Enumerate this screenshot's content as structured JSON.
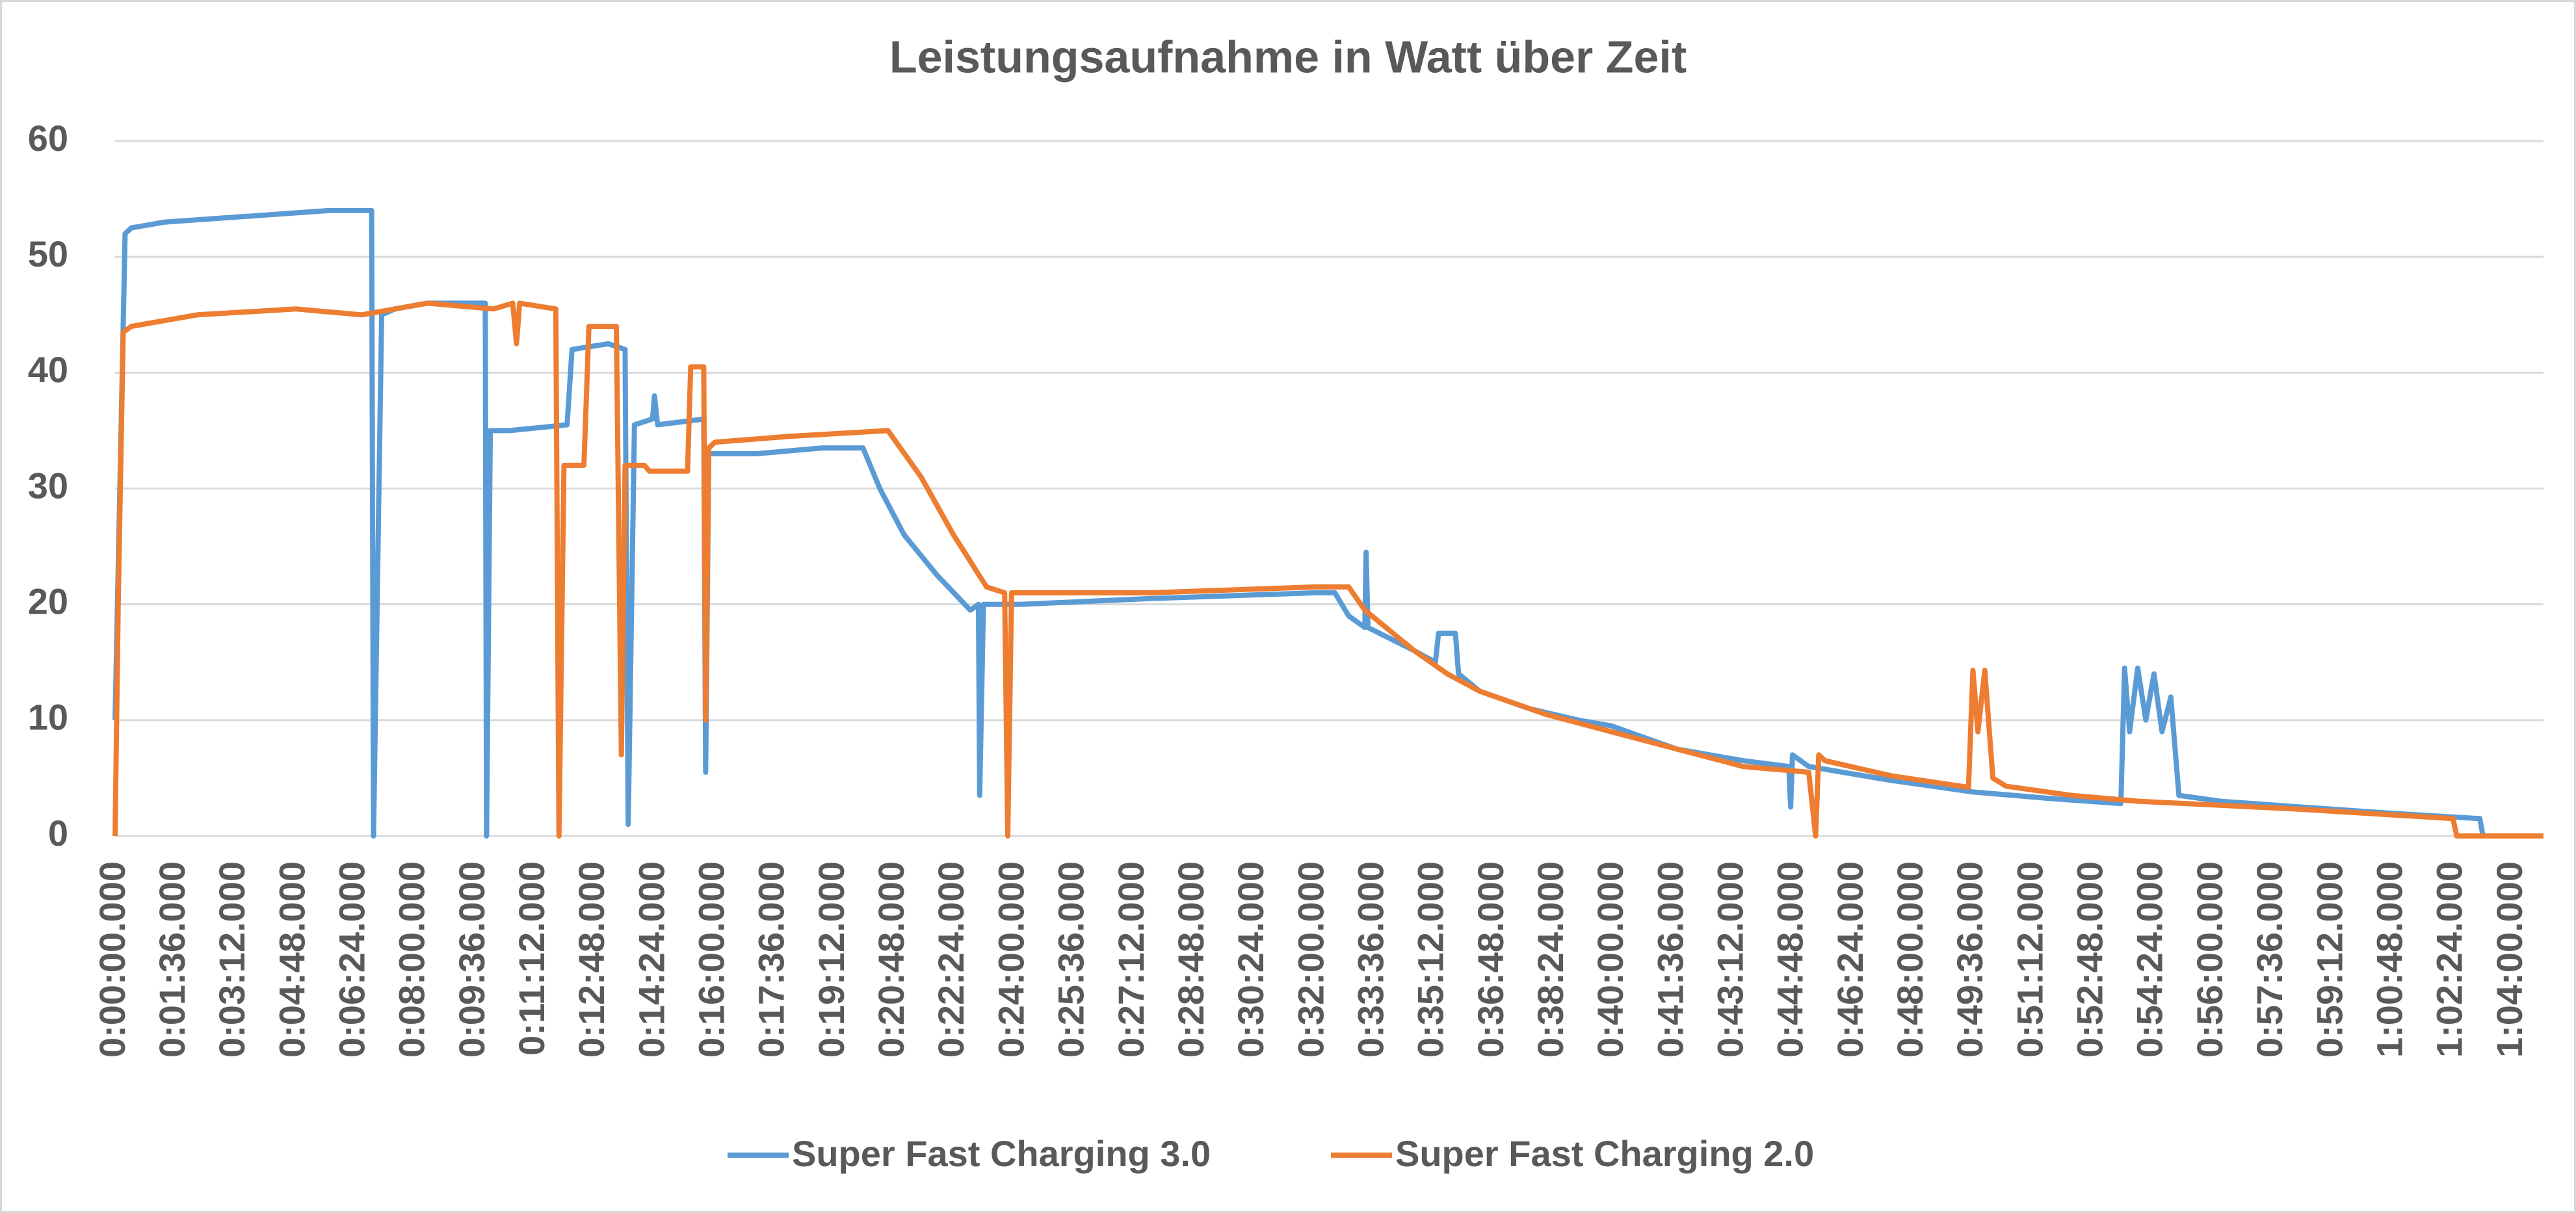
{
  "chart_data": {
    "type": "line",
    "title": "Leistungsaufnahme in Watt über Zeit",
    "xlim": [
      0,
      3890
    ],
    "ylim": [
      0,
      60
    ],
    "yticks": [
      0,
      10,
      20,
      30,
      40,
      50,
      60
    ],
    "grid": true,
    "legend": "bottom",
    "xticks": [
      {
        "value": 0,
        "label": "0:00:00.000"
      },
      {
        "value": 96,
        "label": "0:01:36.000"
      },
      {
        "value": 192,
        "label": "0:03:12.000"
      },
      {
        "value": 288,
        "label": "0:04:48.000"
      },
      {
        "value": 384,
        "label": "0:06:24.000"
      },
      {
        "value": 480,
        "label": "0:08:00.000"
      },
      {
        "value": 576,
        "label": "0:09:36.000"
      },
      {
        "value": 672,
        "label": "0:11:12.000"
      },
      {
        "value": 768,
        "label": "0:12:48.000"
      },
      {
        "value": 864,
        "label": "0:14:24.000"
      },
      {
        "value": 960,
        "label": "0:16:00.000"
      },
      {
        "value": 1056,
        "label": "0:17:36.000"
      },
      {
        "value": 1152,
        "label": "0:19:12.000"
      },
      {
        "value": 1248,
        "label": "0:20:48.000"
      },
      {
        "value": 1344,
        "label": "0:22:24.000"
      },
      {
        "value": 1440,
        "label": "0:24:00.000"
      },
      {
        "value": 1536,
        "label": "0:25:36.000"
      },
      {
        "value": 1632,
        "label": "0:27:12.000"
      },
      {
        "value": 1728,
        "label": "0:28:48.000"
      },
      {
        "value": 1824,
        "label": "0:30:24.000"
      },
      {
        "value": 1920,
        "label": "0:32:00.000"
      },
      {
        "value": 2016,
        "label": "0:33:36.000"
      },
      {
        "value": 2112,
        "label": "0:35:12.000"
      },
      {
        "value": 2208,
        "label": "0:36:48.000"
      },
      {
        "value": 2304,
        "label": "0:38:24.000"
      },
      {
        "value": 2400,
        "label": "0:40:00.000"
      },
      {
        "value": 2496,
        "label": "0:41:36.000"
      },
      {
        "value": 2592,
        "label": "0:43:12.000"
      },
      {
        "value": 2688,
        "label": "0:44:48.000"
      },
      {
        "value": 2784,
        "label": "0:46:24.000"
      },
      {
        "value": 2880,
        "label": "0:48:00.000"
      },
      {
        "value": 2976,
        "label": "0:49:36.000"
      },
      {
        "value": 3072,
        "label": "0:51:12.000"
      },
      {
        "value": 3168,
        "label": "0:52:48.000"
      },
      {
        "value": 3264,
        "label": "0:54:24.000"
      },
      {
        "value": 3360,
        "label": "0:56:00.000"
      },
      {
        "value": 3456,
        "label": "0:57:36.000"
      },
      {
        "value": 3552,
        "label": "0:59:12.000"
      },
      {
        "value": 3648,
        "label": "1:00:48.000"
      },
      {
        "value": 3744,
        "label": "1:02:24.000"
      },
      {
        "value": 3840,
        "label": "1:04:00.000"
      }
    ],
    "series": [
      {
        "name": "Super Fast Charging 3.0",
        "color": "#5b9bd5",
        "x": [
          0,
          16,
          26,
          79,
          211,
          342,
          411,
          414,
          427,
          448,
          500,
          593,
          595,
          601,
          632,
          724,
          732,
          790,
          817,
          822,
          832,
          861,
          864,
          869,
          943,
          946,
          951,
          1027,
          1133,
          1198,
          1225,
          1264,
          1317,
          1370,
          1383,
          1385,
          1391,
          1449,
          1659,
          1923,
          1954,
          1976,
          2002,
          2004,
          2007,
          2081,
          2115,
          2120,
          2147,
          2152,
          2186,
          2265,
          2344,
          2397,
          2423,
          2502,
          2608,
          2681,
          2684,
          2687,
          2713,
          2845,
          2976,
          3108,
          3213,
          3219,
          3227,
          3240,
          3253,
          3266,
          3279,
          3293,
          3306,
          3372,
          3502,
          3635,
          3788,
          3793,
          3890
        ],
        "values": [
          10,
          52,
          52.5,
          53,
          53.5,
          54,
          54,
          0,
          45,
          45.5,
          46,
          46,
          0,
          35,
          35,
          35.5,
          42,
          42.5,
          42,
          1,
          35.5,
          36,
          38,
          35.5,
          36,
          5.5,
          33,
          33,
          33.5,
          33.5,
          30,
          26,
          22.5,
          19.5,
          20,
          3.5,
          20,
          20,
          20.5,
          21,
          21,
          19,
          18,
          24.5,
          18,
          16,
          15,
          17.5,
          17.5,
          14,
          12.5,
          11,
          10,
          9.5,
          9,
          7.5,
          6.5,
          6,
          2.5,
          7,
          6,
          4.8,
          3.8,
          3.2,
          2.8,
          14.5,
          9,
          14.5,
          10,
          14,
          9,
          12,
          3.5,
          3,
          2.5,
          2,
          1.5,
          0,
          0
        ]
      },
      {
        "name": "Super Fast Charging 2.0",
        "color": "#ed7d31",
        "x": [
          0,
          5,
          13,
          26,
          132,
          290,
          395,
          500,
          606,
          637,
          643,
          648,
          706,
          711,
          719,
          751,
          759,
          803,
          811,
          817,
          848,
          856,
          917,
          922,
          943,
          946,
          951,
          961,
          1080,
          1238,
          1291,
          1343,
          1396,
          1425,
          1430,
          1436,
          1659,
          1923,
          1976,
          2002,
          2081,
          2134,
          2186,
          2292,
          2397,
          2502,
          2608,
          2713,
          2724,
          2729,
          2739,
          2845,
          2969,
          2976,
          2984,
          2995,
          3008,
          3029,
          3134,
          3240,
          3503,
          3745,
          3751,
          3890
        ],
        "values": [
          0,
          20,
          43.5,
          44,
          45,
          45.5,
          45,
          46,
          45.5,
          46,
          42.5,
          46,
          45.5,
          0,
          32,
          32,
          44,
          44,
          7,
          32,
          32,
          31.5,
          31.5,
          40.5,
          40.5,
          10,
          33.5,
          34,
          34.5,
          35,
          31,
          26,
          21.5,
          21,
          0,
          21,
          21,
          21.5,
          21.5,
          19.5,
          16,
          14,
          12.5,
          10.5,
          9,
          7.5,
          6,
          5.5,
          0,
          7,
          6.5,
          5.2,
          4.2,
          14.3,
          9,
          14.3,
          5,
          4.3,
          3.5,
          3,
          2.3,
          1.5,
          0,
          0
        ]
      }
    ]
  }
}
